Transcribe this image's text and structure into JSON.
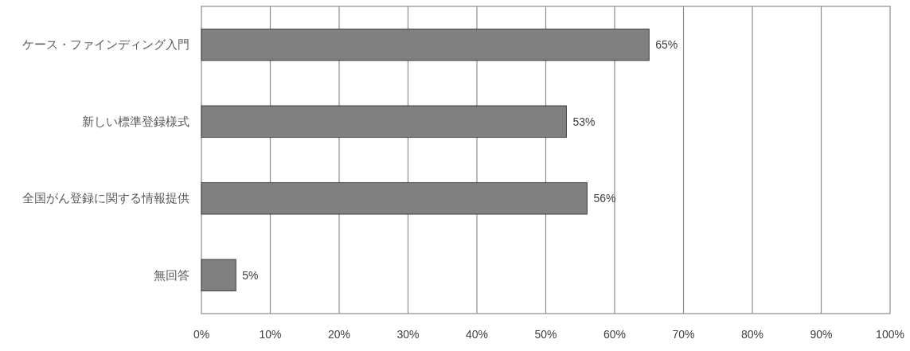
{
  "chart_data": {
    "type": "bar",
    "orientation": "horizontal",
    "categories": [
      "ケース・ファインディング入門",
      "新しい標準登録様式",
      "全国がん登録に関する情報提供",
      "無回答"
    ],
    "values": [
      65,
      53,
      56,
      5
    ],
    "value_labels": [
      "65%",
      "53%",
      "56%",
      "5%"
    ],
    "color": "#808080",
    "xlim": [
      0,
      100
    ],
    "xticks": [
      {
        "value": 0,
        "label": "0%"
      },
      {
        "value": 10,
        "label": "10%"
      },
      {
        "value": 20,
        "label": "20%"
      },
      {
        "value": 30,
        "label": "30%"
      },
      {
        "value": 40,
        "label": "40%"
      },
      {
        "value": 50,
        "label": "50%"
      },
      {
        "value": 60,
        "label": "60%"
      },
      {
        "value": 70,
        "label": "70%"
      },
      {
        "value": 80,
        "label": "80%"
      },
      {
        "value": 90,
        "label": "90%"
      },
      {
        "value": 100,
        "label": "100%"
      }
    ],
    "grid": "x"
  }
}
